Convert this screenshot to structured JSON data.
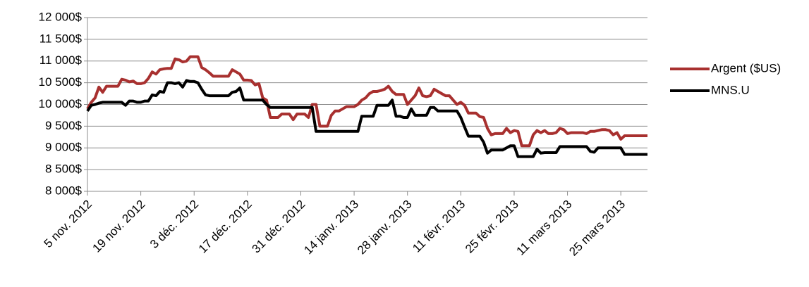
{
  "chart_data": {
    "type": "line",
    "categories": [
      "5 nov. 2012",
      null,
      null,
      null,
      null,
      null,
      null,
      null,
      null,
      null,
      null,
      null,
      null,
      null,
      "19 nov. 2012",
      null,
      null,
      null,
      null,
      null,
      null,
      null,
      null,
      null,
      null,
      null,
      null,
      null,
      "3 déc. 2012",
      null,
      null,
      null,
      null,
      null,
      null,
      null,
      null,
      null,
      null,
      null,
      null,
      null,
      "17 déc. 2012",
      null,
      null,
      null,
      null,
      null,
      null,
      null,
      null,
      null,
      null,
      null,
      null,
      null,
      "31 déc. 2012",
      null,
      null,
      null,
      null,
      null,
      null,
      null,
      null,
      null,
      null,
      null,
      null,
      null,
      "14 janv. 2013",
      null,
      null,
      null,
      null,
      null,
      null,
      null,
      null,
      null,
      null,
      null,
      null,
      null,
      "28 janv. 2013",
      null,
      null,
      null,
      null,
      null,
      null,
      null,
      null,
      null,
      null,
      null,
      null,
      null,
      "11 févr. 2013",
      null,
      null,
      null,
      null,
      null,
      null,
      null,
      null,
      null,
      null,
      null,
      null,
      null,
      "25 févr. 2013",
      null,
      null,
      null,
      null,
      null,
      null,
      null,
      null,
      null,
      null,
      null,
      null,
      null,
      "11 mars 2013",
      null,
      null,
      null,
      null,
      null,
      null,
      null,
      null,
      null,
      null,
      null,
      null,
      null,
      "25 mars 2013",
      null,
      null,
      null,
      null,
      null,
      null,
      null
    ],
    "series": [
      {
        "name": "Argent ($US)",
        "color": "#a8302f",
        "values": [
          9900,
          10050,
          10150,
          10400,
          10280,
          10420,
          10420,
          10420,
          10420,
          10580,
          10560,
          10520,
          10540,
          10480,
          10480,
          10500,
          10600,
          10750,
          10700,
          10800,
          10820,
          10830,
          10830,
          11050,
          11030,
          10980,
          11000,
          11100,
          11100,
          11100,
          10850,
          10800,
          10730,
          10650,
          10650,
          10650,
          10650,
          10650,
          10800,
          10750,
          10700,
          10560,
          10560,
          10550,
          10450,
          10480,
          10150,
          10100,
          9700,
          9700,
          9700,
          9780,
          9780,
          9780,
          9650,
          9780,
          9780,
          9780,
          9700,
          10000,
          10000,
          9500,
          9500,
          9500,
          9750,
          9850,
          9850,
          9900,
          9950,
          9950,
          9950,
          10000,
          10100,
          10150,
          10250,
          10300,
          10300,
          10320,
          10350,
          10420,
          10300,
          10230,
          10230,
          10230,
          10000,
          10100,
          10200,
          10380,
          10200,
          10180,
          10200,
          10350,
          10300,
          10250,
          10200,
          10200,
          10100,
          10000,
          10050,
          9980,
          9800,
          9800,
          9800,
          9720,
          9700,
          9450,
          9300,
          9330,
          9330,
          9330,
          9450,
          9350,
          9400,
          9380,
          9050,
          9050,
          9050,
          9300,
          9400,
          9350,
          9400,
          9330,
          9330,
          9350,
          9450,
          9420,
          9330,
          9350,
          9350,
          9350,
          9350,
          9330,
          9380,
          9380,
          9400,
          9420,
          9420,
          9400,
          9300,
          9350,
          9200,
          9280,
          9280,
          9280,
          9280,
          9280,
          9280,
          9280
        ]
      },
      {
        "name": "MNS.U",
        "color": "#000000",
        "values": [
          9850,
          9980,
          10000,
          10030,
          10050,
          10050,
          10050,
          10050,
          10050,
          10050,
          9980,
          10080,
          10080,
          10050,
          10050,
          10080,
          10080,
          10220,
          10200,
          10300,
          10280,
          10500,
          10500,
          10480,
          10500,
          10400,
          10550,
          10530,
          10530,
          10500,
          10350,
          10220,
          10200,
          10200,
          10200,
          10200,
          10200,
          10200,
          10280,
          10300,
          10380,
          10100,
          10100,
          10100,
          10100,
          10100,
          10100,
          10000,
          9930,
          9930,
          9930,
          9930,
          9930,
          9930,
          9930,
          9930,
          9930,
          9930,
          9930,
          9930,
          9380,
          9380,
          9380,
          9380,
          9380,
          9380,
          9380,
          9380,
          9380,
          9380,
          9380,
          9380,
          9730,
          9730,
          9730,
          9730,
          9980,
          9980,
          9980,
          9980,
          10100,
          9730,
          9730,
          9700,
          9700,
          9900,
          9750,
          9750,
          9750,
          9750,
          9930,
          9930,
          9850,
          9850,
          9850,
          9850,
          9850,
          9850,
          9700,
          9480,
          9270,
          9270,
          9270,
          9270,
          9130,
          8880,
          8950,
          8950,
          8950,
          8950,
          9000,
          9050,
          9050,
          8800,
          8800,
          8800,
          8800,
          8800,
          8970,
          8880,
          8890,
          8890,
          8890,
          8890,
          9030,
          9030,
          9030,
          9030,
          9030,
          9030,
          9030,
          9030,
          8920,
          8900,
          9000,
          9000,
          9000,
          9000,
          9000,
          9000,
          9000,
          8850,
          8850,
          8850,
          8850,
          8850,
          8850,
          8850
        ]
      }
    ],
    "ylim": [
      8000,
      12000
    ],
    "yticks": [
      {
        "value": 8000,
        "label": "8 000$"
      },
      {
        "value": 8500,
        "label": "8 500$"
      },
      {
        "value": 9000,
        "label": "9 000$"
      },
      {
        "value": 9500,
        "label": "9 500$"
      },
      {
        "value": 10000,
        "label": "10 000$"
      },
      {
        "value": 10500,
        "label": "10 500$"
      },
      {
        "value": 11000,
        "label": "11 000$"
      },
      {
        "value": 11500,
        "label": "11 500$"
      },
      {
        "value": 12000,
        "label": "12 000$"
      }
    ],
    "grid": true,
    "legend": "right"
  }
}
